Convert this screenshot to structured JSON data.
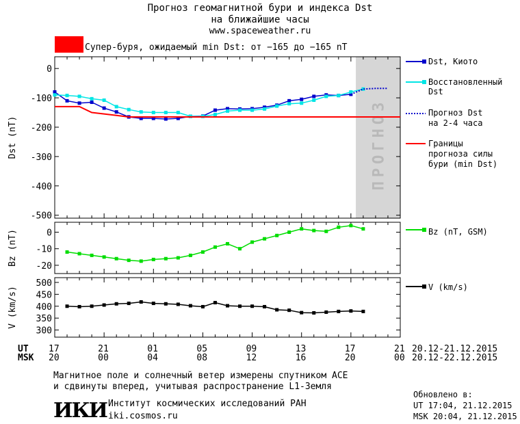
{
  "header": {
    "title_line1": "Прогноз геомагнитной бури и индекса Dst",
    "title_line2": "на ближайшие часы",
    "site": "www.spaceweather.ru",
    "storm_text": "Супер-буря, ожидаемый min Dst: от −165 до −165 nT",
    "storm_color": "#ff0000"
  },
  "forecast_label": "ПРОГНОЗ",
  "time_axis": {
    "ut_label": "UT",
    "msk_label": "MSK",
    "ut_ticks": [
      "17",
      "21",
      "01",
      "05",
      "09",
      "13",
      "17",
      "21"
    ],
    "msk_ticks": [
      "20",
      "00",
      "04",
      "08",
      "12",
      "16",
      "20",
      "00"
    ],
    "ut_range": "20.12-21.12.2015",
    "msk_range": "20.12-22.12.2015"
  },
  "footer": {
    "note1": "Магнитное поле и солнечный ветер измерены спутником ACE",
    "note2": "и сдвинуты вперед, учитывая распространение L1-Земля",
    "logo": "ИКИ",
    "institute": "Институт космических исследований РАН",
    "institute_url": "iki.cosmos.ru",
    "updated_label": "Обновлено в:",
    "updated_ut": "UT  17:04, 21.12.2015",
    "updated_msk": "MSK 20:04, 21.12.2015"
  },
  "chart_data": [
    {
      "type": "line",
      "ylabel": "Dst (nT)",
      "ylim": [
        -510,
        40
      ],
      "yticks": [
        0,
        -100,
        -200,
        -300,
        -400,
        -500
      ],
      "xlim": [
        0,
        28
      ],
      "forecast_region": [
        24.4,
        28
      ],
      "series": [
        {
          "name": "Dst, Киото",
          "color": "#0000cc",
          "style": "solid-square",
          "x": [
            0,
            1,
            2,
            3,
            4,
            5,
            6,
            7,
            8,
            9,
            10,
            11,
            12,
            13,
            14,
            15,
            16,
            17,
            18,
            19,
            20,
            21,
            22,
            23,
            24
          ],
          "y": [
            -80,
            -110,
            -118,
            -115,
            -135,
            -148,
            -165,
            -170,
            -170,
            -172,
            -170,
            -163,
            -162,
            -142,
            -137,
            -138,
            -137,
            -132,
            -125,
            -110,
            -105,
            -95,
            -90,
            -92,
            -88
          ]
        },
        {
          "name": "Восстановленный Dst",
          "color": "#00e5e5",
          "style": "solid-square",
          "x": [
            0,
            1,
            2,
            3,
            4,
            5,
            6,
            7,
            8,
            9,
            10,
            11,
            12,
            13,
            14,
            15,
            16,
            17,
            18,
            19,
            20,
            21,
            22,
            23,
            24,
            25
          ],
          "y": [
            -90,
            -92,
            -95,
            -103,
            -108,
            -130,
            -140,
            -148,
            -150,
            -150,
            -150,
            -163,
            -163,
            -157,
            -145,
            -142,
            -142,
            -138,
            -128,
            -120,
            -118,
            -108,
            -95,
            -92,
            -80,
            -70
          ]
        },
        {
          "name": "Прогноз Dst на 2-4 часа",
          "color": "#0000cc",
          "style": "dotted",
          "x": [
            24,
            25,
            26,
            27
          ],
          "y": [
            -88,
            -70,
            -68,
            -68
          ]
        },
        {
          "name": "Границы прогноза силы бури (min Dst)",
          "color": "#ff0000",
          "style": "solid",
          "x": [
            0,
            2,
            3,
            5,
            6,
            28
          ],
          "y": [
            -130,
            -130,
            -150,
            -160,
            -165,
            -165
          ]
        }
      ],
      "legend_placement": "right"
    },
    {
      "type": "line",
      "ylabel": "Bz (nT)",
      "ylim": [
        -25,
        6
      ],
      "yticks": [
        0,
        -10,
        -20
      ],
      "xlim": [
        0,
        28
      ],
      "series": [
        {
          "name": "Bz (nT, GSM)",
          "color": "#00dd00",
          "style": "solid-square",
          "x": [
            1,
            2,
            3,
            4,
            5,
            6,
            7,
            8,
            9,
            10,
            11,
            12,
            13,
            14,
            15,
            16,
            17,
            18,
            19,
            20,
            21,
            22,
            23,
            24,
            25
          ],
          "y": [
            -12,
            -13,
            -14,
            -15,
            -16,
            -17,
            -17.5,
            -16.5,
            -16,
            -15.5,
            -14,
            -12,
            -9,
            -7,
            -10,
            -6,
            -4,
            -2,
            0,
            2,
            1,
            0.5,
            3,
            4,
            2
          ]
        }
      ],
      "legend_placement": "right"
    },
    {
      "type": "line",
      "ylabel": "V (km/s)",
      "ylim": [
        270,
        520
      ],
      "yticks": [
        500,
        450,
        400,
        350,
        300
      ],
      "xlim": [
        0,
        28
      ],
      "series": [
        {
          "name": "V (km/s)",
          "color": "#000000",
          "style": "solid-square",
          "x": [
            1,
            2,
            3,
            4,
            5,
            6,
            7,
            8,
            9,
            10,
            11,
            12,
            13,
            14,
            15,
            16,
            17,
            18,
            19,
            20,
            21,
            22,
            23,
            24,
            25
          ],
          "y": [
            400,
            398,
            400,
            405,
            410,
            412,
            418,
            412,
            410,
            408,
            402,
            398,
            415,
            402,
            400,
            400,
            398,
            385,
            383,
            373,
            372,
            375,
            378,
            380,
            378
          ]
        }
      ],
      "legend_placement": "right"
    }
  ],
  "legend": {
    "dst_kyoto": "Dst, Киото",
    "restored_1": "Восстановленный",
    "restored_2": "Dst",
    "forecast_1": "Прогноз Dst",
    "forecast_2": "на 2-4 часа",
    "bounds_1": "Границы",
    "bounds_2": "прогноза силы",
    "bounds_3": "бури (min Dst)",
    "bz": "Bz (nT, GSM)",
    "v": "V (km/s)"
  }
}
